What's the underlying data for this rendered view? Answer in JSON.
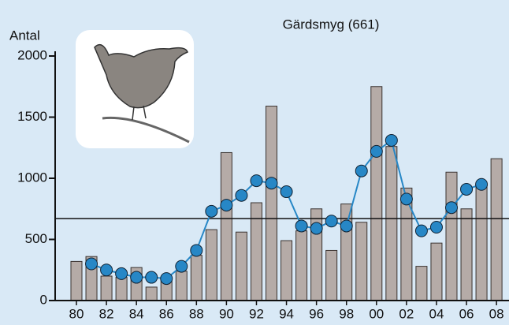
{
  "chart_data": {
    "type": "bar_line",
    "title": "Gärdsmyg (661)",
    "y_label": "Antal",
    "categories": [
      "80",
      null,
      "82",
      null,
      "84",
      null,
      "86",
      null,
      "88",
      null,
      "90",
      null,
      "92",
      null,
      "94",
      null,
      "96",
      null,
      "98",
      null,
      "00",
      null,
      "02",
      null,
      "04",
      null,
      "06",
      null,
      "08"
    ],
    "series": [
      {
        "type": "bar",
        "color": "#b5aba7",
        "values": [
          320,
          360,
          200,
          190,
          270,
          110,
          180,
          240,
          370,
          580,
          1210,
          560,
          800,
          1590,
          490,
          570,
          750,
          410,
          790,
          640,
          1750,
          1260,
          920,
          280,
          470,
          1050,
          750,
          930,
          1160
        ]
      },
      {
        "type": "line",
        "color": "#2787c6",
        "values": [
          null,
          300,
          250,
          220,
          190,
          190,
          180,
          280,
          410,
          730,
          780,
          860,
          980,
          960,
          890,
          610,
          590,
          650,
          610,
          1060,
          1220,
          1310,
          830,
          570,
          600,
          760,
          910,
          950,
          null
        ]
      }
    ],
    "reference_line": 670,
    "ylim": [
      0,
      2000
    ],
    "yticks": [
      0,
      500,
      1000,
      1500,
      2000
    ]
  }
}
